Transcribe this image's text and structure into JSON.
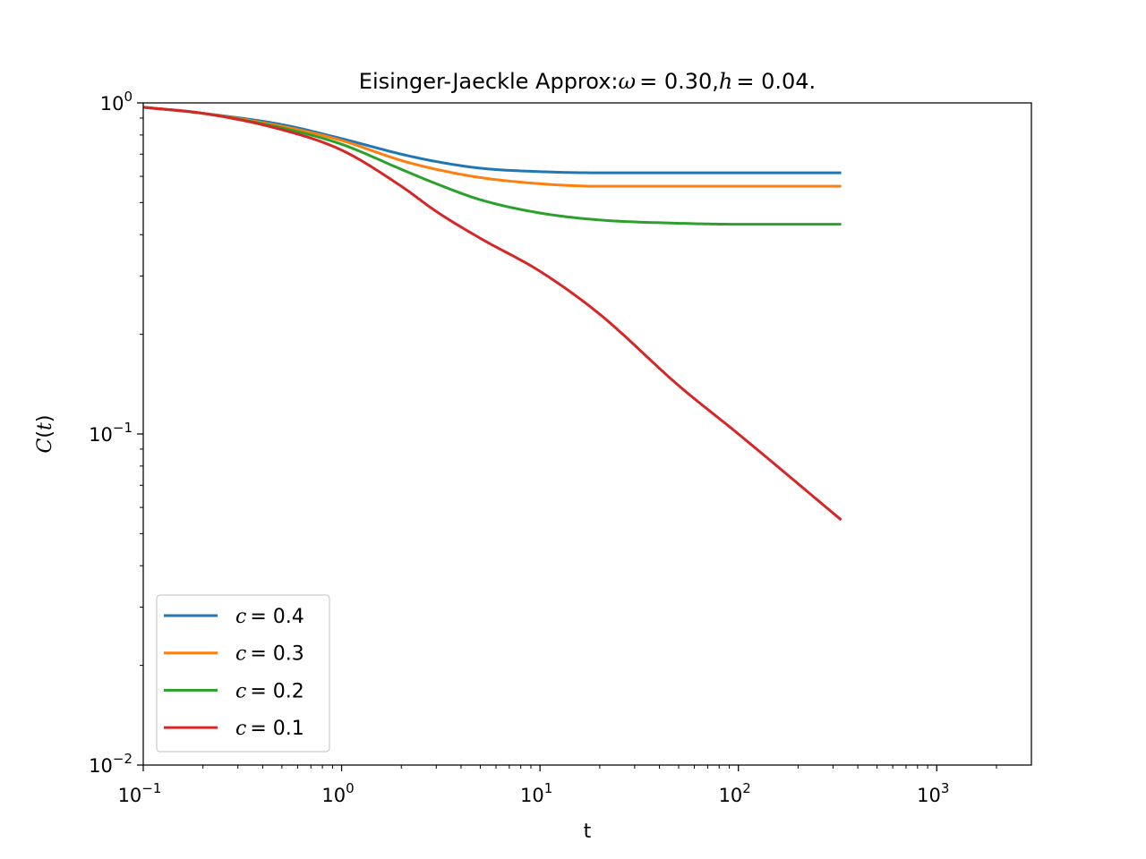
{
  "chart_data": {
    "type": "line",
    "title": {
      "prefix": "Eisinger-Jaeckle Approx:",
      "omega_symbol": "ω",
      "omega_value": "= 0.30,",
      "h_symbol": "h",
      "h_value": "= 0.04."
    },
    "xlabel": "t",
    "ylabel": {
      "symbol": "C",
      "open": "(",
      "var": "t",
      "close": ")"
    },
    "xscale": "log",
    "yscale": "log",
    "xlim": [
      0.1,
      3000
    ],
    "ylim": [
      0.01,
      1
    ],
    "x_major_ticks": [
      {
        "value": 0.1,
        "base": "10",
        "exp": "−1"
      },
      {
        "value": 1,
        "base": "10",
        "exp": "0"
      },
      {
        "value": 10,
        "base": "10",
        "exp": "1"
      },
      {
        "value": 100,
        "base": "10",
        "exp": "2"
      },
      {
        "value": 1000,
        "base": "10",
        "exp": "3"
      }
    ],
    "y_major_ticks": [
      {
        "value": 0.01,
        "base": "10",
        "exp": "−2"
      },
      {
        "value": 0.1,
        "base": "10",
        "exp": "−1"
      },
      {
        "value": 1,
        "base": "10",
        "exp": "0"
      }
    ],
    "legend_position": "lower-left",
    "series": [
      {
        "name": "c = 0.4",
        "name_var": "c",
        "name_value": "= 0.4",
        "color": "#1f77b4",
        "x": [
          0.1,
          0.2,
          0.5,
          1,
          2,
          3,
          5,
          10,
          20,
          50,
          100,
          330
        ],
        "y": [
          0.97,
          0.93,
          0.86,
          0.78,
          0.7,
          0.665,
          0.635,
          0.62,
          0.615,
          0.615,
          0.615,
          0.615
        ]
      },
      {
        "name": "c = 0.3",
        "name_var": "c",
        "name_value": "= 0.3",
        "color": "#ff7f0e",
        "x": [
          0.1,
          0.2,
          0.5,
          1,
          2,
          3,
          5,
          10,
          20,
          50,
          100,
          330
        ],
        "y": [
          0.97,
          0.93,
          0.85,
          0.77,
          0.67,
          0.63,
          0.595,
          0.57,
          0.56,
          0.56,
          0.56,
          0.56
        ]
      },
      {
        "name": "c = 0.2",
        "name_var": "c",
        "name_value": "= 0.2",
        "color": "#2ca02c",
        "x": [
          0.1,
          0.2,
          0.5,
          1,
          2,
          3,
          5,
          10,
          20,
          50,
          100,
          330
        ],
        "y": [
          0.97,
          0.93,
          0.84,
          0.75,
          0.63,
          0.57,
          0.51,
          0.465,
          0.443,
          0.433,
          0.43,
          0.43
        ]
      },
      {
        "name": "c = 0.1",
        "name_var": "c",
        "name_value": "= 0.1",
        "color": "#d62728",
        "x": [
          0.1,
          0.2,
          0.5,
          1,
          2,
          3,
          5,
          10,
          20,
          50,
          100,
          330
        ],
        "y": [
          0.97,
          0.93,
          0.83,
          0.72,
          0.56,
          0.47,
          0.39,
          0.31,
          0.23,
          0.14,
          0.1,
          0.055
        ]
      }
    ]
  }
}
